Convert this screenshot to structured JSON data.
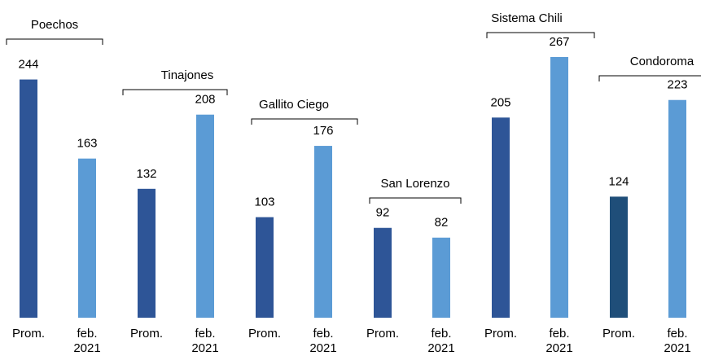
{
  "chart_data": {
    "type": "bar",
    "categories": [
      "Poechos",
      "Tinajones",
      "Gallito Ciego",
      "San Lorenzo",
      "Sistema Chili",
      "Condoroma"
    ],
    "series": [
      {
        "name": "Prom.",
        "color": "#2e5597",
        "colors": [
          "#2e5597",
          "#2e5597",
          "#2e5597",
          "#2e5597",
          "#2e5597",
          "#1f4e79"
        ],
        "values": [
          244,
          132,
          103,
          92,
          205,
          124
        ]
      },
      {
        "name": "feb. 2021",
        "color": "#5b9bd5",
        "values": [
          163,
          208,
          176,
          82,
          267,
          223
        ]
      }
    ]
  }
}
